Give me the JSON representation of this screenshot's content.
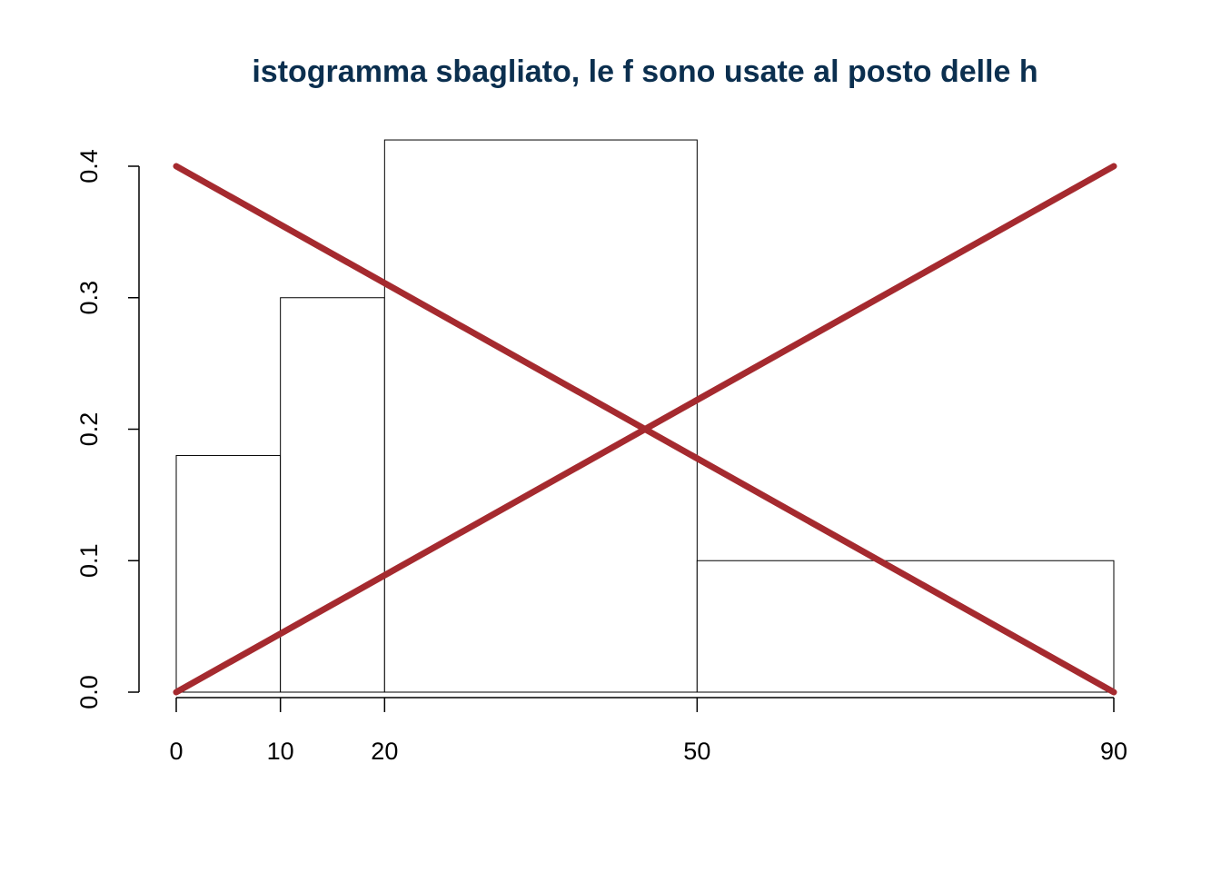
{
  "chart_data": {
    "type": "bar",
    "title": "istogramma sbagliato, le f sono usate al posto delle h",
    "xlabel": "",
    "ylabel": "",
    "bins": [
      {
        "from": 0,
        "to": 10,
        "value": 0.18
      },
      {
        "from": 10,
        "to": 20,
        "value": 0.3
      },
      {
        "from": 20,
        "to": 50,
        "value": 0.42
      },
      {
        "from": 50,
        "to": 90,
        "value": 0.1
      }
    ],
    "x_ticks": [
      0,
      10,
      20,
      50,
      90
    ],
    "y_ticks": [
      "0.0",
      "0.1",
      "0.2",
      "0.3",
      "0.4"
    ],
    "xlim": [
      0,
      90
    ],
    "ylim": [
      0,
      0.4
    ],
    "grid": false,
    "cross_lines": [
      {
        "x": [
          0,
          90
        ],
        "y": [
          0.4,
          0
        ]
      },
      {
        "x": [
          0,
          90
        ],
        "y": [
          0,
          0.4
        ]
      }
    ],
    "colors": {
      "title": "#0b2f4f",
      "cross": "#a52a2f",
      "bar_stroke": "#000000",
      "bar_fill": "#ffffff"
    }
  }
}
